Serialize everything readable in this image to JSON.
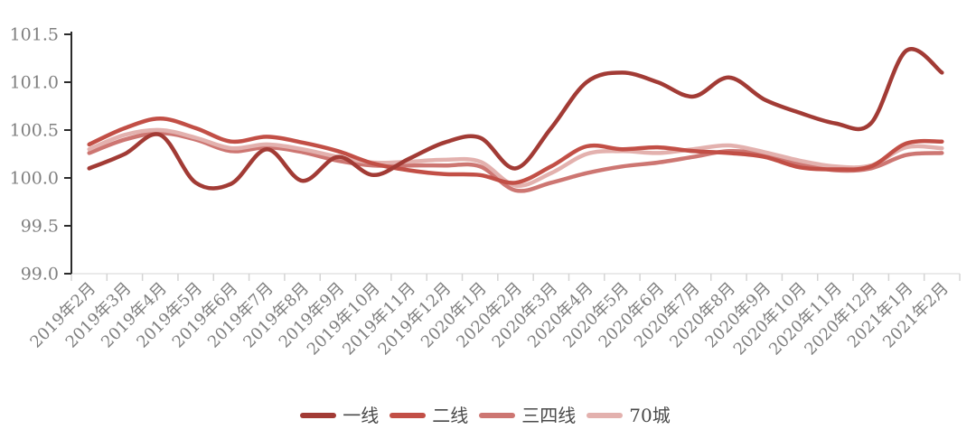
{
  "chart_data": {
    "type": "line",
    "title": "",
    "xlabel": "",
    "ylabel": "",
    "categories": [
      "2019年2月",
      "2019年3月",
      "2019年4月",
      "2019年5月",
      "2019年6月",
      "2019年7月",
      "2019年8月",
      "2019年9月",
      "2019年10月",
      "2019年11月",
      "2019年12月",
      "2020年1月",
      "2020年2月",
      "2020年3月",
      "2020年4月",
      "2020年5月",
      "2020年6月",
      "2020年7月",
      "2020年8月",
      "2020年9月",
      "2020年10月",
      "2020年11月",
      "2020年12月",
      "2021年1月",
      "2021年2月"
    ],
    "series": [
      {
        "id": "tier1",
        "name": "一线",
        "color": "#a23b35",
        "values": [
          100.1,
          100.25,
          100.45,
          99.95,
          99.94,
          100.3,
          99.97,
          100.22,
          100.03,
          100.2,
          100.37,
          100.42,
          100.1,
          100.52,
          101.0,
          101.1,
          101.0,
          100.85,
          101.05,
          100.82,
          100.68,
          100.57,
          100.57,
          101.33,
          101.1
        ]
      },
      {
        "id": "tier2",
        "name": "二线",
        "color": "#c24f46",
        "values": [
          100.35,
          100.52,
          100.62,
          100.52,
          100.38,
          100.43,
          100.37,
          100.28,
          100.15,
          100.08,
          100.04,
          100.03,
          99.95,
          100.12,
          100.33,
          100.3,
          100.32,
          100.28,
          100.26,
          100.22,
          100.11,
          100.09,
          100.12,
          100.36,
          100.38
        ]
      },
      {
        "id": "tier34",
        "name": "三四线",
        "color": "#cd7672",
        "values": [
          100.26,
          100.4,
          100.47,
          100.4,
          100.28,
          100.32,
          100.27,
          100.18,
          100.13,
          100.13,
          100.13,
          100.12,
          99.87,
          99.95,
          100.05,
          100.12,
          100.16,
          100.22,
          100.28,
          100.25,
          100.15,
          100.08,
          100.1,
          100.24,
          100.26
        ]
      },
      {
        "id": "cities70",
        "name": "70城",
        "color": "#e3b1ae",
        "values": [
          100.3,
          100.45,
          100.5,
          100.42,
          100.31,
          100.35,
          100.3,
          100.22,
          100.16,
          100.17,
          100.19,
          100.17,
          99.92,
          100.05,
          100.25,
          100.28,
          100.26,
          100.3,
          100.34,
          100.27,
          100.18,
          100.12,
          100.13,
          100.32,
          100.31
        ]
      }
    ],
    "ylim": [
      99.0,
      101.5
    ],
    "yticks": [
      "99.0",
      "99.5",
      "100.0",
      "100.5",
      "101.0",
      "101.5"
    ],
    "grid": "off",
    "legend_position": "bottom",
    "style": {
      "y_spine_color": "#2b2b2b",
      "x_spine_color": "#e3e3e3",
      "x_tick_color": "#d4d4d4",
      "axis_label_color": "#7f7f7f",
      "legend_text_color": "#4a4a4a"
    }
  }
}
